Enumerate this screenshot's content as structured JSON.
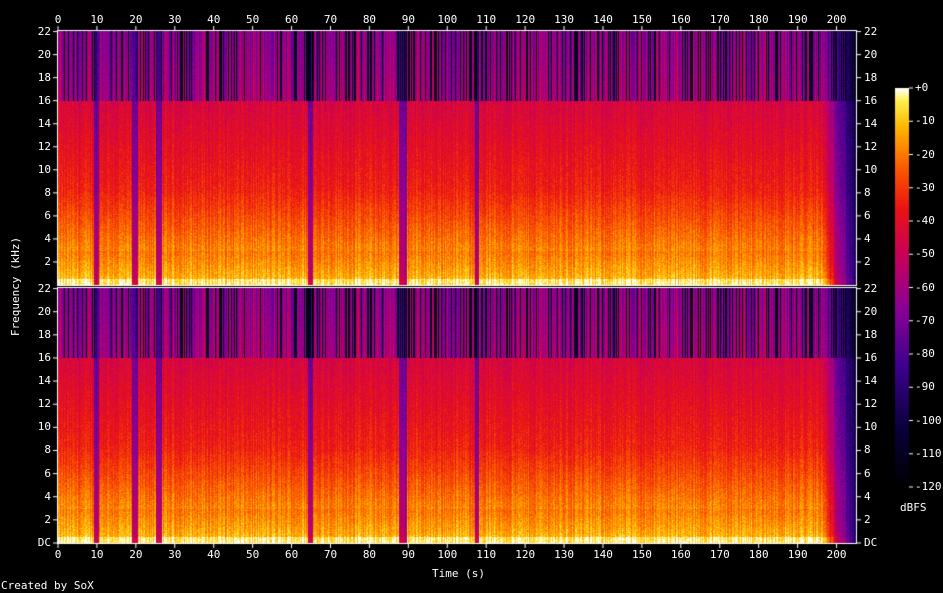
{
  "chart_data": {
    "type": "heatmap",
    "xlabel": "Time (s)",
    "ylabel": "Frequency (kHz)",
    "x_ticks": [
      "0",
      "10",
      "20",
      "30",
      "40",
      "50",
      "60",
      "70",
      "80",
      "90",
      "100",
      "110",
      "120",
      "130",
      "140",
      "150",
      "160",
      "170",
      "180",
      "190",
      "200"
    ],
    "y_ticks_top": [
      "2",
      "4",
      "6",
      "8",
      "10",
      "12",
      "14",
      "16",
      "18",
      "20",
      "22"
    ],
    "y_ticks_bottom": [
      "DC",
      "2",
      "4",
      "6",
      "8",
      "10",
      "12",
      "14",
      "16",
      "18",
      "20",
      "22"
    ],
    "xlim": [
      0,
      205
    ],
    "ylim_khz": [
      0,
      22.05
    ],
    "channels": 2,
    "colorbar": {
      "unit": "dBFS",
      "range": [
        -120,
        0
      ],
      "ticks": [
        "+0",
        "-10",
        "-20",
        "-30",
        "-40",
        "-50",
        "-60",
        "-70",
        "-80",
        "-90",
        "-100",
        "-110",
        "-120"
      ]
    },
    "credit": "Created by SoX",
    "colors": {
      "background": "#000000",
      "text": "#ffffff"
    }
  }
}
